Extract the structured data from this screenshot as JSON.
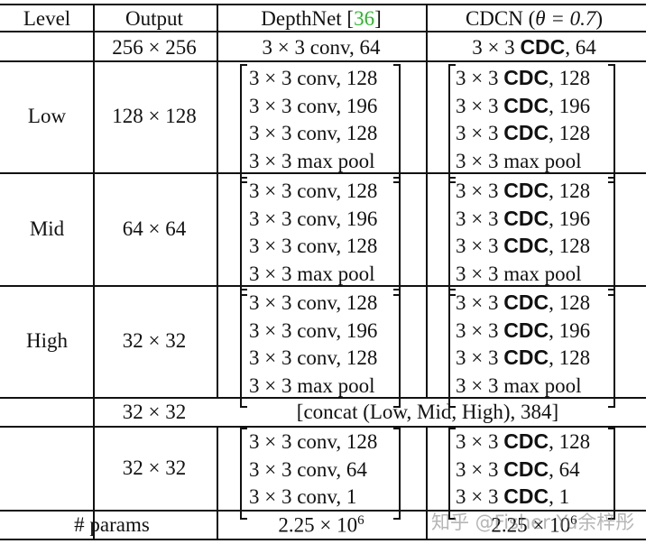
{
  "header": {
    "level": "Level",
    "output": "Output",
    "depthnet": "DepthNet [",
    "depthnet_ref": "36",
    "depthnet_close": "]",
    "cdcn": "CDCN (",
    "cdcn_theta": "θ = 0.7",
    "cdcn_close": ")"
  },
  "row_stem": {
    "output": "256 × 256",
    "depthnet": "3 × 3 conv, 64",
    "cdcn_prefix": "3 × 3 ",
    "cdcn_bold": "CDC",
    "cdcn_suffix": ", 64"
  },
  "blocks": [
    {
      "level": "Low",
      "output": "128 × 128",
      "depthnet": [
        "3 × 3 conv, 128",
        "3 × 3 conv, 196",
        "3 × 3 conv, 128",
        "3 × 3 max pool"
      ],
      "cdcn": [
        {
          "pre": "3 × 3 ",
          "b": "CDC",
          "post": ", 128"
        },
        {
          "pre": "3 × 3 ",
          "b": "CDC",
          "post": ", 196"
        },
        {
          "pre": "3 × 3 ",
          "b": "CDC",
          "post": ", 128"
        },
        {
          "pre": "3 × 3 max pool",
          "b": "",
          "post": ""
        }
      ]
    },
    {
      "level": "Mid",
      "output": "64 × 64",
      "depthnet": [
        "3 × 3 conv, 128",
        "3 × 3 conv, 196",
        "3 × 3 conv, 128",
        "3 × 3 max pool"
      ],
      "cdcn": [
        {
          "pre": "3 × 3 ",
          "b": "CDC",
          "post": ", 128"
        },
        {
          "pre": "3 × 3 ",
          "b": "CDC",
          "post": ", 196"
        },
        {
          "pre": "3 × 3 ",
          "b": "CDC",
          "post": ", 128"
        },
        {
          "pre": "3 × 3 max pool",
          "b": "",
          "post": ""
        }
      ]
    },
    {
      "level": "High",
      "output": "32 × 32",
      "depthnet": [
        "3 × 3 conv, 128",
        "3 × 3 conv, 196",
        "3 × 3 conv, 128",
        "3 × 3 max pool"
      ],
      "cdcn": [
        {
          "pre": "3 × 3 ",
          "b": "CDC",
          "post": ", 128"
        },
        {
          "pre": "3 × 3 ",
          "b": "CDC",
          "post": ", 196"
        },
        {
          "pre": "3 × 3 ",
          "b": "CDC",
          "post": ", 128"
        },
        {
          "pre": "3 × 3 max pool",
          "b": "",
          "post": ""
        }
      ]
    }
  ],
  "concat_row": {
    "output": "32 × 32",
    "text": "[concat (Low, Mid, High), 384]"
  },
  "head_block": {
    "output": "32 × 32",
    "depthnet": [
      "3 × 3 conv, 128",
      "3 × 3 conv, 64",
      "3 × 3 conv, 1"
    ],
    "cdcn": [
      {
        "pre": "3 × 3 ",
        "b": "CDC",
        "post": ", 128"
      },
      {
        "pre": "3 × 3 ",
        "b": "CDC",
        "post": ", 64"
      },
      {
        "pre": "3 × 3 ",
        "b": "CDC",
        "post": ", 1"
      }
    ]
  },
  "params_row": {
    "label": "# params",
    "depthnet": "2.25 × 10",
    "depthnet_exp": "6",
    "cdcn": "2.25 × 10",
    "cdcn_exp": "6"
  },
  "watermark": "知乎 @Fisher Yu余梓彤"
}
